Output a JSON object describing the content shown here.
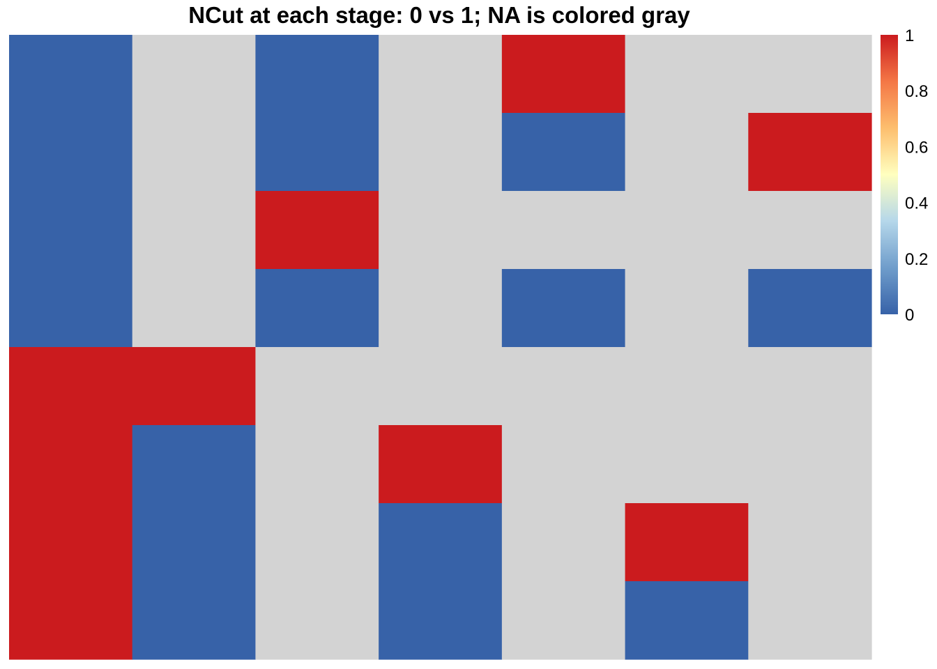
{
  "chart_data": {
    "type": "heatmap",
    "title": "NCut at each stage: 0 vs 1; NA is colored gray",
    "n_rows": 8,
    "n_cols": 7,
    "values": [
      [
        0,
        null,
        0,
        null,
        1,
        null,
        null
      ],
      [
        0,
        null,
        0,
        null,
        0,
        null,
        1
      ],
      [
        0,
        null,
        1,
        null,
        null,
        null,
        null
      ],
      [
        0,
        null,
        0,
        null,
        0,
        null,
        0
      ],
      [
        1,
        1,
        null,
        null,
        null,
        null,
        null
      ],
      [
        1,
        0,
        null,
        1,
        null,
        null,
        null
      ],
      [
        1,
        0,
        null,
        0,
        null,
        1,
        null
      ],
      [
        1,
        0,
        null,
        0,
        null,
        0,
        null
      ]
    ],
    "na_color": "#D3D3D3",
    "colors": {
      "low": "#3762A8",
      "high": "#CB1B1E"
    },
    "color_scale": [
      "#3762A8",
      "#6F9DCB",
      "#B5D7EA",
      "#FFFFBF",
      "#FDBE6E",
      "#F47746",
      "#CB1B1E"
    ],
    "legend": {
      "range": [
        0,
        1
      ],
      "ticks": [
        "0",
        "0.2",
        "0.4",
        "0.6",
        "0.8",
        "1"
      ],
      "placement": "right"
    }
  }
}
